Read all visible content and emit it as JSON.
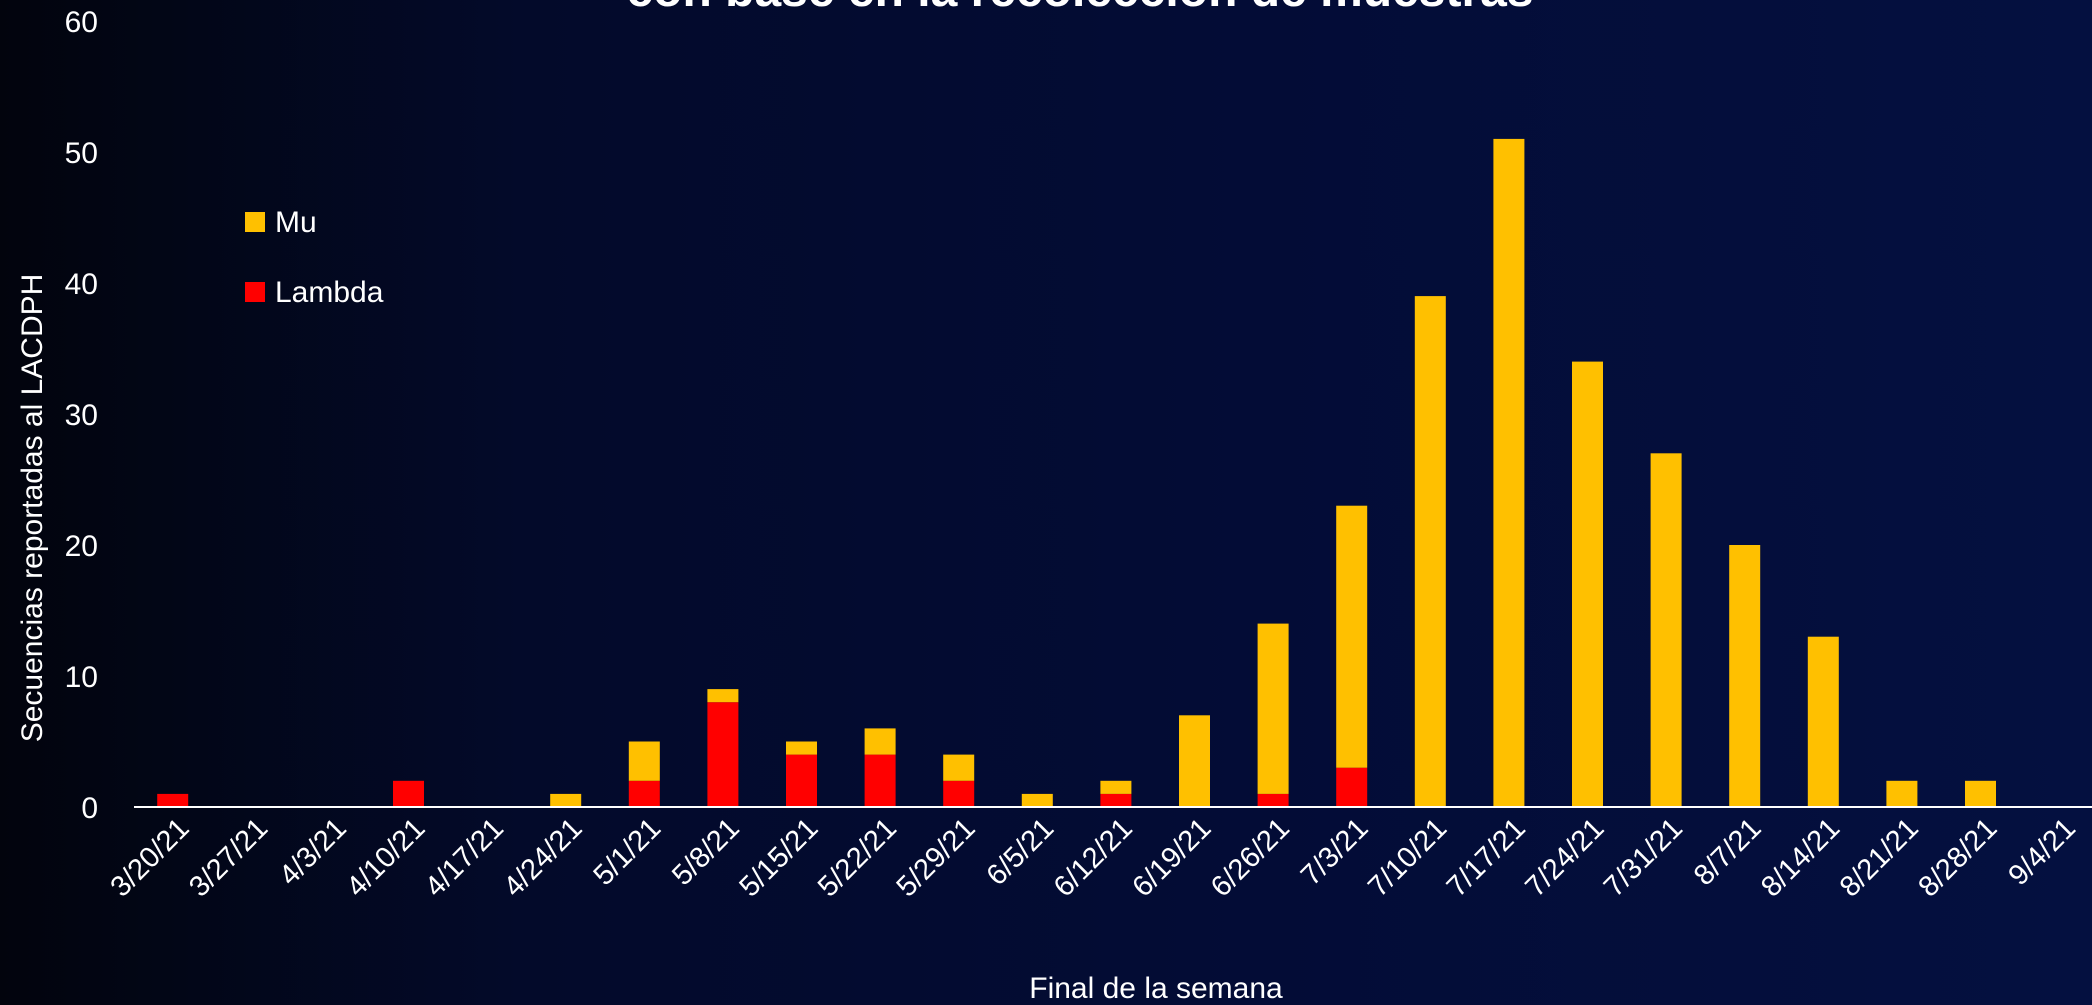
{
  "chart_data": {
    "type": "bar",
    "stacked": true,
    "title": "con base en la recolección de muestras",
    "xlabel": "Final de la semana",
    "ylabel": "Secuencias reportadas al LACDPH",
    "ylim": [
      0,
      60
    ],
    "yticks": [
      0,
      10,
      20,
      30,
      40,
      50,
      60
    ],
    "categories": [
      "3/20/21",
      "3/27/21",
      "4/3/21",
      "4/10/21",
      "4/17/21",
      "4/24/21",
      "5/1/21",
      "5/8/21",
      "5/15/21",
      "5/22/21",
      "5/29/21",
      "6/5/21",
      "6/12/21",
      "6/19/21",
      "6/26/21",
      "7/3/21",
      "7/10/21",
      "7/17/21",
      "7/24/21",
      "7/31/21",
      "8/7/21",
      "8/14/21",
      "8/21/21",
      "8/28/21",
      "9/4/21"
    ],
    "series": [
      {
        "name": "Lambda",
        "color": "#ff0000",
        "values": [
          1,
          0,
          0,
          2,
          0,
          0,
          2,
          8,
          4,
          4,
          2,
          0,
          1,
          0,
          1,
          3,
          0,
          0,
          0,
          0,
          0,
          0,
          0,
          0,
          0
        ]
      },
      {
        "name": "Mu",
        "color": "#ffc000",
        "values": [
          0,
          0,
          0,
          0,
          0,
          1,
          3,
          1,
          1,
          2,
          2,
          1,
          1,
          7,
          13,
          20,
          39,
          51,
          34,
          27,
          20,
          13,
          2,
          2,
          0
        ]
      }
    ],
    "legend": {
      "position": "top-left",
      "order": [
        "Mu",
        "Lambda"
      ]
    },
    "grid": false
  }
}
